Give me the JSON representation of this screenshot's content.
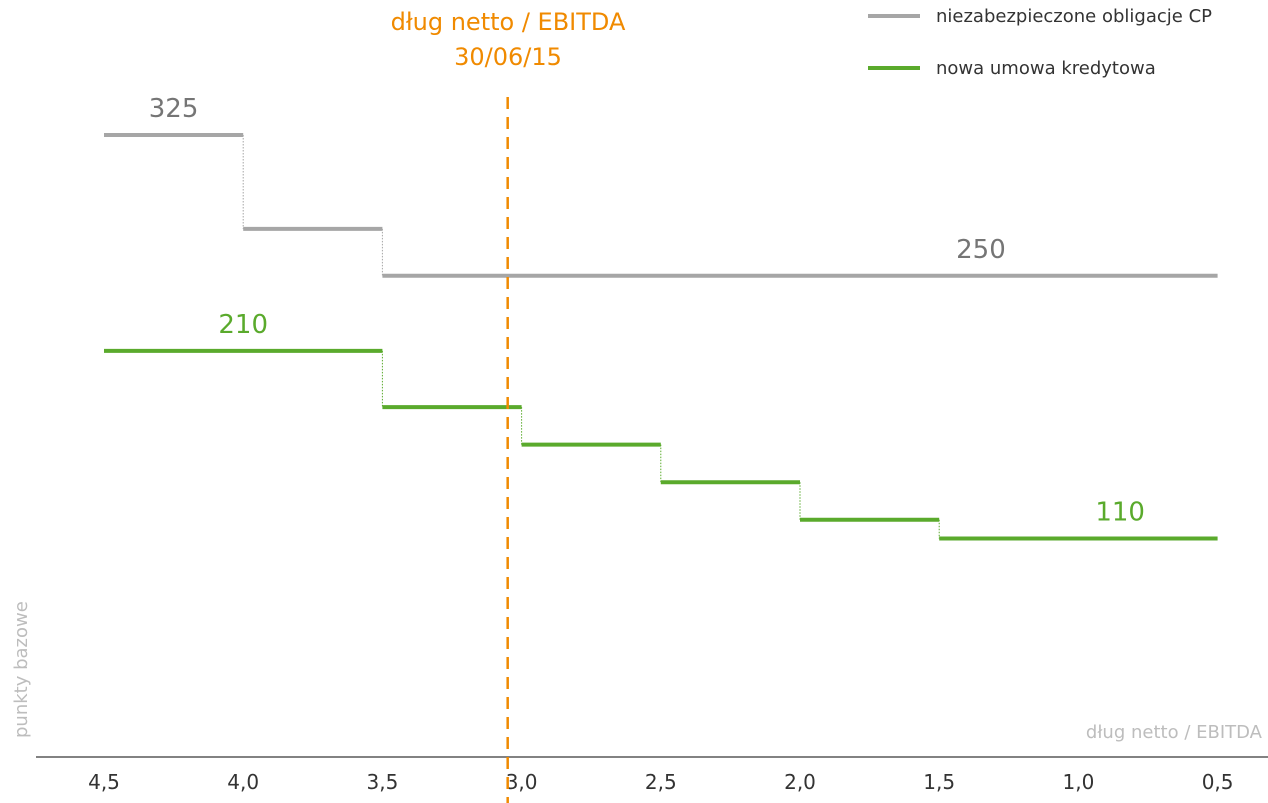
{
  "chart_data": {
    "type": "line",
    "step": true,
    "x_axis_reversed": true,
    "xlabel": "dług netto / EBITDA",
    "ylabel": "punkty bazowe",
    "x_ticks": [
      "4,5",
      "4,0",
      "3,5",
      "3,0",
      "2,5",
      "2,0",
      "1,5",
      "1,0",
      "0,5"
    ],
    "x_tick_values": [
      4.5,
      4.0,
      3.5,
      3.0,
      2.5,
      2.0,
      1.5,
      1.0,
      0.5
    ],
    "xlim": [
      4.5,
      0.5
    ],
    "ylim": [
      0,
      345
    ],
    "colors": {
      "grey_series": "#a6a6a6",
      "green_series": "#5aaa2c",
      "marker": "#f08a00",
      "axis": "#595959"
    },
    "marker": {
      "x": 3.05,
      "label_line1": "dług netto / EBITDA",
      "label_line2": "30/06/15"
    },
    "series": [
      {
        "name": "niezabezpieczone obligacje CP",
        "color": "#a6a6a6",
        "segments": [
          {
            "x_from": 4.5,
            "x_to": 4.0,
            "y": 325
          },
          {
            "x_from": 4.0,
            "x_to": 3.5,
            "y": 275
          },
          {
            "x_from": 3.5,
            "x_to": 0.5,
            "y": 250
          }
        ],
        "labels": [
          {
            "text": "325",
            "x": 4.25,
            "y": 325
          },
          {
            "text": "250",
            "x": 1.35,
            "y": 250
          }
        ]
      },
      {
        "name": "nowa umowa kredytowa",
        "color": "#5aaa2c",
        "segments": [
          {
            "x_from": 4.5,
            "x_to": 3.5,
            "y": 210
          },
          {
            "x_from": 3.5,
            "x_to": 3.0,
            "y": 180
          },
          {
            "x_from": 3.0,
            "x_to": 2.5,
            "y": 160
          },
          {
            "x_from": 2.5,
            "x_to": 2.0,
            "y": 140
          },
          {
            "x_from": 2.0,
            "x_to": 1.5,
            "y": 120
          },
          {
            "x_from": 1.5,
            "x_to": 0.5,
            "y": 110
          }
        ],
        "labels": [
          {
            "text": "210",
            "x": 4.0,
            "y": 210
          },
          {
            "text": "110",
            "x": 0.85,
            "y": 110
          }
        ]
      }
    ]
  }
}
